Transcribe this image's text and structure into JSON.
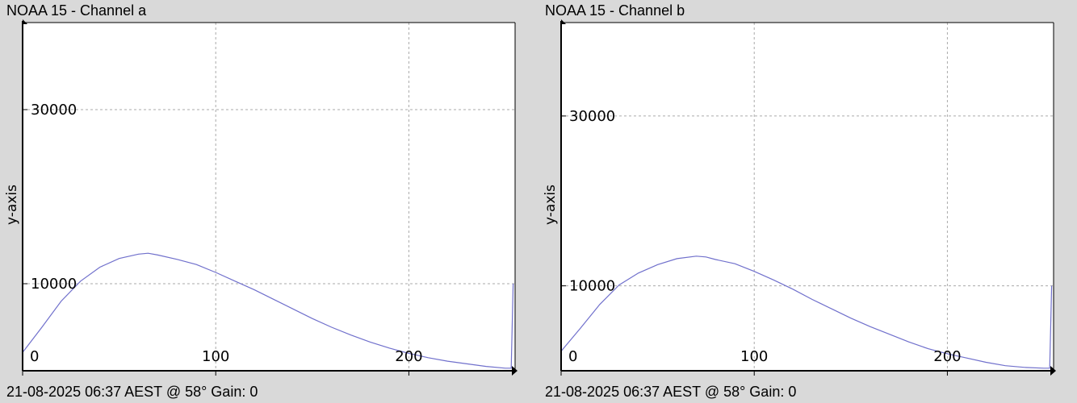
{
  "chart_data": [
    {
      "type": "line",
      "title": "NOAA 15 - Channel a",
      "footer": "21-08-2025 06:37 AEST @ 58° Gain: 0",
      "xlabel": "",
      "ylabel": "y-axis",
      "xlim": [
        0,
        255
      ],
      "ylim": [
        0,
        40000
      ],
      "xticks": [
        0,
        100,
        200
      ],
      "yticks": [
        10000,
        30000
      ],
      "grid": true,
      "line_color": "#7070cc",
      "series": [
        {
          "x": [
            0,
            10,
            20,
            30,
            40,
            50,
            60,
            65,
            70,
            80,
            90,
            100,
            110,
            120,
            130,
            140,
            150,
            160,
            170,
            180,
            190,
            200,
            210,
            220,
            230,
            240,
            250,
            253,
            254
          ],
          "y": [
            2100,
            5000,
            8000,
            10300,
            11900,
            12900,
            13400,
            13500,
            13300,
            12800,
            12200,
            11300,
            10300,
            9300,
            8200,
            7100,
            6000,
            5000,
            4100,
            3300,
            2600,
            2000,
            1500,
            1100,
            800,
            500,
            300,
            300,
            10000
          ]
        }
      ]
    },
    {
      "type": "line",
      "title": "NOAA 15 - Channel b",
      "footer": "21-08-2025 06:37 AEST @ 58° Gain: 0",
      "xlabel": "",
      "ylabel": "y-axis",
      "xlim": [
        0,
        255
      ],
      "ylim": [
        0,
        41000
      ],
      "xticks": [
        0,
        100,
        200
      ],
      "yticks": [
        10000,
        30000
      ],
      "grid": true,
      "line_color": "#7070cc",
      "series": [
        {
          "x": [
            0,
            10,
            20,
            30,
            40,
            50,
            60,
            70,
            75,
            80,
            90,
            100,
            110,
            120,
            130,
            140,
            150,
            160,
            170,
            180,
            190,
            200,
            210,
            220,
            230,
            240,
            250,
            253,
            254
          ],
          "y": [
            2300,
            5000,
            7800,
            10100,
            11500,
            12500,
            13200,
            13500,
            13400,
            13100,
            12600,
            11700,
            10700,
            9600,
            8400,
            7300,
            6200,
            5200,
            4300,
            3400,
            2600,
            2000,
            1500,
            1000,
            600,
            400,
            300,
            300,
            10000
          ]
        }
      ]
    }
  ]
}
